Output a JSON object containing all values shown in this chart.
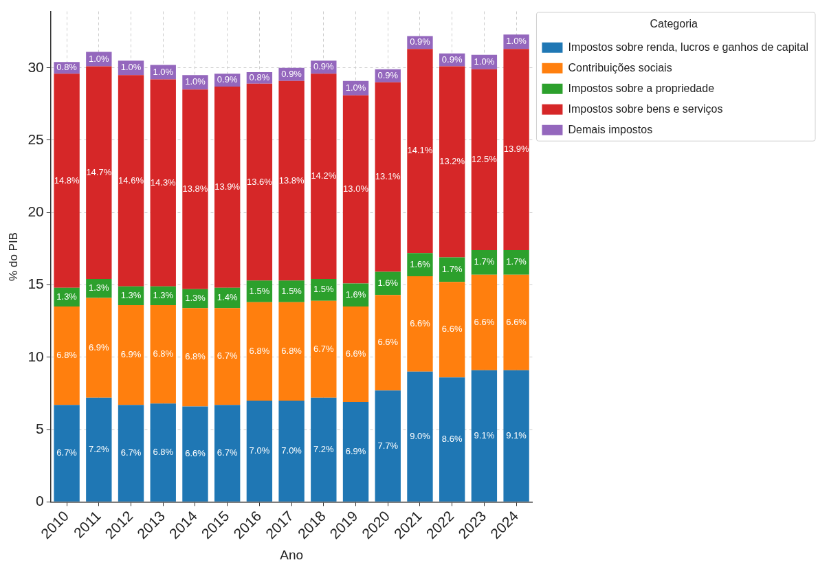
{
  "chart_data": {
    "type": "bar",
    "stacked": true,
    "xlabel": "Ano",
    "ylabel": "% do PIB",
    "legend_title": "Categoria",
    "legend": "top right",
    "grid": true,
    "categories": [
      "2010",
      "2011",
      "2012",
      "2013",
      "2014",
      "2015",
      "2016",
      "2017",
      "2018",
      "2019",
      "2020",
      "2021",
      "2022",
      "2023",
      "2024"
    ],
    "ylim": [
      0,
      33.9
    ],
    "yticks": [
      0,
      5,
      10,
      15,
      20,
      25,
      30
    ],
    "series": [
      {
        "name": "Impostos sobre renda, lucros e ganhos de capital",
        "color": "#1f77b4",
        "values": [
          6.7,
          7.2,
          6.7,
          6.8,
          6.6,
          6.7,
          7.0,
          7.0,
          7.2,
          6.9,
          7.7,
          9.0,
          8.6,
          9.1,
          9.1
        ],
        "value_labels": [
          "6.7%",
          "7.2%",
          "6.7%",
          "6.8%",
          "6.6%",
          "6.7%",
          "7.0%",
          "7.0%",
          "7.2%",
          "6.9%",
          "7.7%",
          "9.0%",
          "8.6%",
          "9.1%",
          "9.1%"
        ]
      },
      {
        "name": "Contribuições sociais",
        "color": "#ff7f0e",
        "values": [
          6.8,
          6.9,
          6.9,
          6.8,
          6.8,
          6.7,
          6.8,
          6.8,
          6.7,
          6.6,
          6.6,
          6.6,
          6.6,
          6.6,
          6.6
        ],
        "value_labels": [
          "6.8%",
          "6.9%",
          "6.9%",
          "6.8%",
          "6.8%",
          "6.7%",
          "6.8%",
          "6.8%",
          "6.7%",
          "6.6%",
          "6.6%",
          "6.6%",
          "6.6%",
          "6.6%",
          "6.6%"
        ]
      },
      {
        "name": "Impostos sobre a propriedade",
        "color": "#2ca02c",
        "values": [
          1.3,
          1.3,
          1.3,
          1.3,
          1.3,
          1.4,
          1.5,
          1.5,
          1.5,
          1.6,
          1.6,
          1.6,
          1.7,
          1.7,
          1.7
        ],
        "value_labels": [
          "1.3%",
          "1.3%",
          "1.3%",
          "1.3%",
          "1.3%",
          "1.4%",
          "1.5%",
          "1.5%",
          "1.5%",
          "1.6%",
          "1.6%",
          "1.6%",
          "1.7%",
          "1.7%",
          "1.7%"
        ]
      },
      {
        "name": "Impostos sobre bens e serviços",
        "color": "#d62728",
        "values": [
          14.8,
          14.7,
          14.6,
          14.3,
          13.8,
          13.9,
          13.6,
          13.8,
          14.2,
          13.0,
          13.1,
          14.1,
          13.2,
          12.5,
          13.9
        ],
        "value_labels": [
          "14.8%",
          "14.7%",
          "14.6%",
          "14.3%",
          "13.8%",
          "13.9%",
          "13.6%",
          "13.8%",
          "14.2%",
          "13.0%",
          "13.1%",
          "14.1%",
          "13.2%",
          "12.5%",
          "13.9%"
        ]
      },
      {
        "name": "Demais impostos",
        "color": "#9467bd",
        "values": [
          0.8,
          1.0,
          1.0,
          1.0,
          1.0,
          0.9,
          0.8,
          0.9,
          0.9,
          1.0,
          0.9,
          0.9,
          0.9,
          1.0,
          1.0
        ],
        "value_labels": [
          "0.8%",
          "1.0%",
          "1.0%",
          "1.0%",
          "1.0%",
          "0.9%",
          "0.8%",
          "0.9%",
          "0.9%",
          "1.0%",
          "0.9%",
          "0.9%",
          "0.9%",
          "1.0%",
          "1.0%"
        ]
      }
    ]
  }
}
